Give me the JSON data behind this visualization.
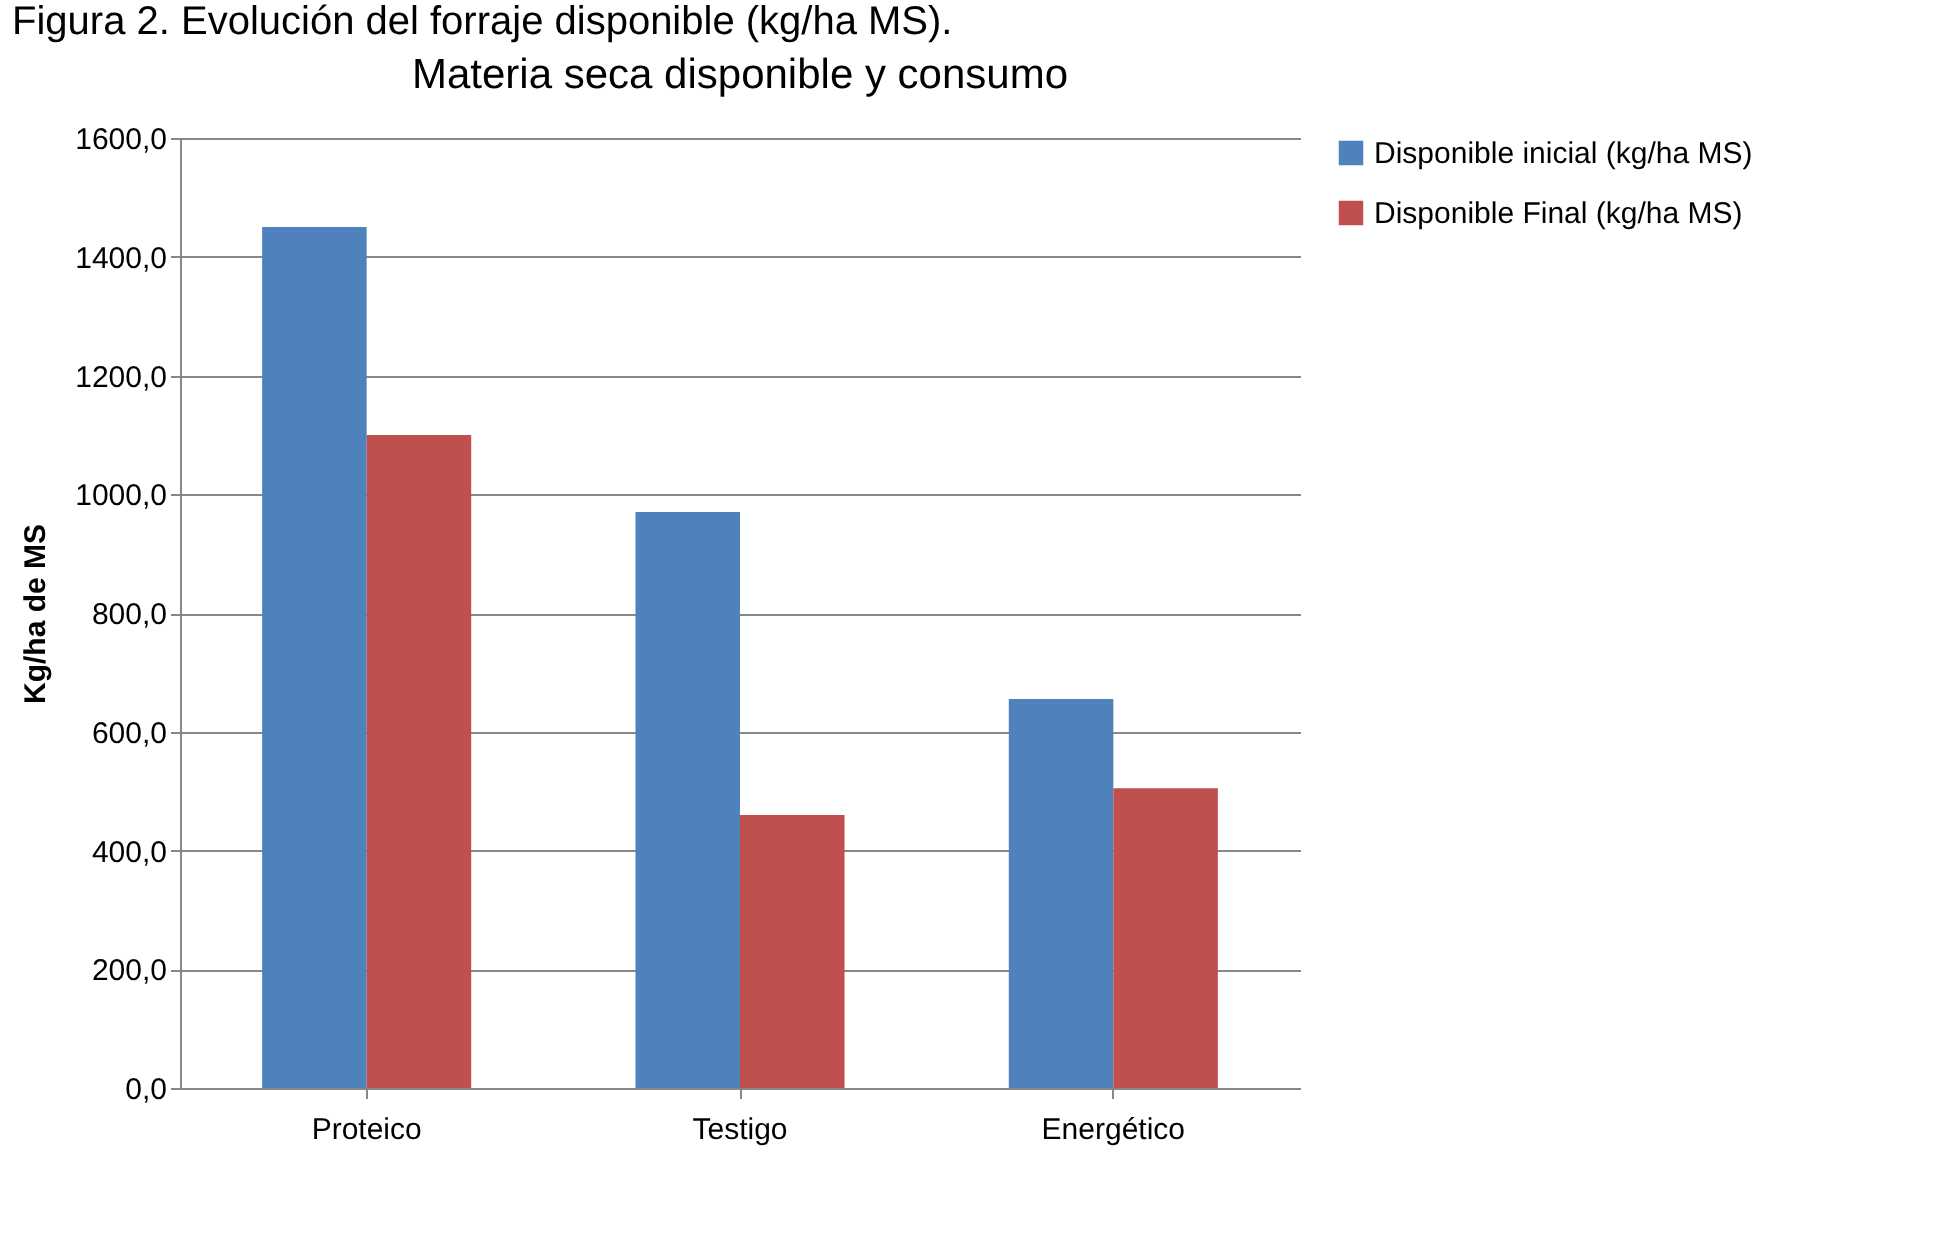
{
  "chart_data": {
    "type": "bar",
    "title": "Materia seca disponible y consumo",
    "ylabel": "Kg/ha de MS",
    "annotations": [
      "Figura 2. Evolución del forraje disponible (kg/ha MS)."
    ],
    "categories": [
      "Proteico",
      "Testigo",
      "Energético"
    ],
    "series": [
      {
        "name": "Disponible inicial (kg/ha MS)",
        "color": "#4f81bd",
        "values": [
          1450,
          970,
          655
        ]
      },
      {
        "name": "Disponible Final (kg/ha MS)",
        "color": "#c0504d",
        "values": [
          1100,
          460,
          505
        ]
      }
    ],
    "ylim": [
      0,
      1600
    ],
    "yticks": [
      {
        "value": 0,
        "label": "0,0"
      },
      {
        "value": 200,
        "label": "200,0"
      },
      {
        "value": 400,
        "label": "400,0"
      },
      {
        "value": 600,
        "label": "600,0"
      },
      {
        "value": 800,
        "label": "800,0"
      },
      {
        "value": 1000,
        "label": "1000,0"
      },
      {
        "value": 1200,
        "label": "1200,0"
      },
      {
        "value": 1400,
        "label": "1400,0"
      },
      {
        "value": 1600,
        "label": "1600,0"
      }
    ],
    "grid": "y",
    "legend": "right"
  }
}
